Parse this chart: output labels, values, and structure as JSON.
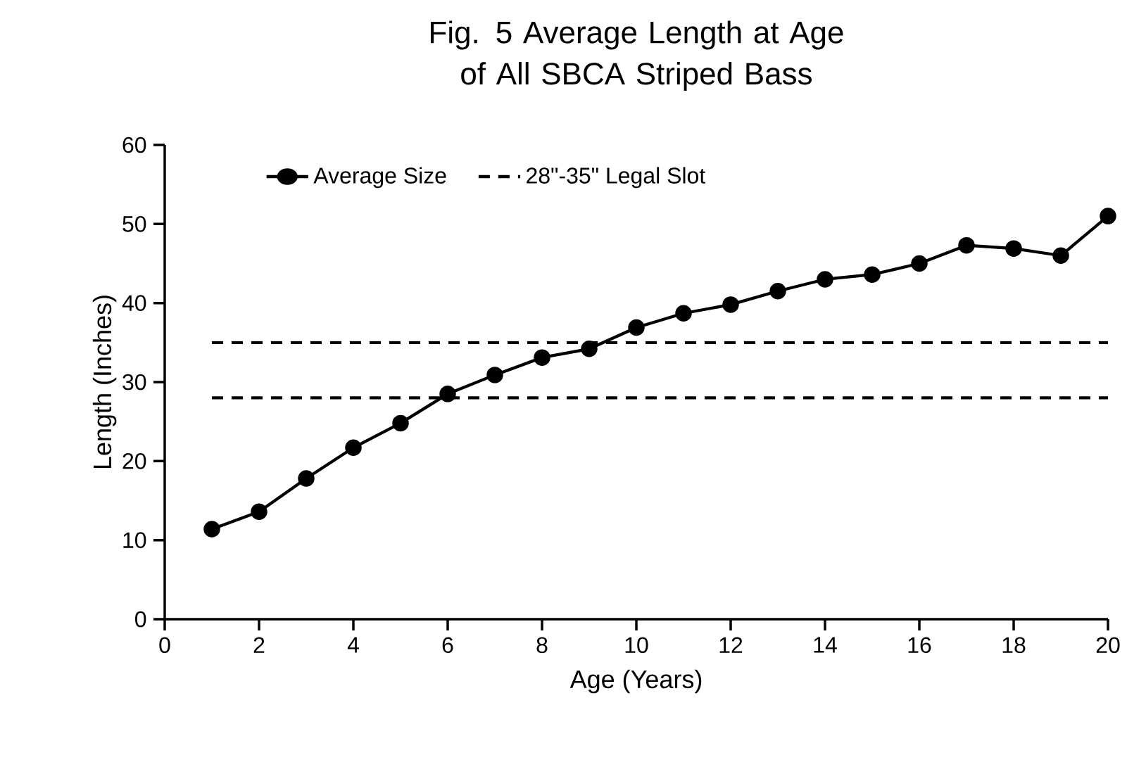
{
  "chart_data": {
    "type": "line",
    "title": "Fig. 5 Average Length at Age of All SBCA Striped Bass",
    "xlabel": "Age (Years)",
    "ylabel": "Length (Inches)",
    "x": [
      1,
      2,
      3,
      4,
      5,
      6,
      7,
      8,
      9,
      10,
      11,
      12,
      13,
      14,
      15,
      16,
      17,
      18,
      19,
      20
    ],
    "series": [
      {
        "name": "Average Size",
        "color": "#000000",
        "values": [
          11.4,
          13.6,
          17.8,
          21.7,
          24.8,
          28.5,
          30.9,
          33.1,
          34.2,
          36.9,
          38.7,
          39.8,
          41.5,
          43.0,
          43.6,
          45.0,
          47.3,
          46.9,
          46.0,
          51.0
        ]
      }
    ],
    "ref_lines": [
      {
        "axis": "y",
        "value": 28,
        "label": "28\"-35\" Legal Slot",
        "color": "#000000",
        "line_style": "dashed"
      },
      {
        "axis": "y",
        "value": 35,
        "color": "#000000",
        "line_style": "dashed"
      }
    ],
    "xlim": [
      0,
      20
    ],
    "xticks": [
      0,
      2,
      4,
      6,
      8,
      10,
      12,
      14,
      16,
      18,
      20
    ],
    "ylim": [
      0,
      60
    ],
    "yticks": [
      0,
      10,
      20,
      30,
      40,
      50,
      60
    ],
    "grid": false,
    "legend": "top left",
    "marker": "circle",
    "line_style": "solid"
  }
}
